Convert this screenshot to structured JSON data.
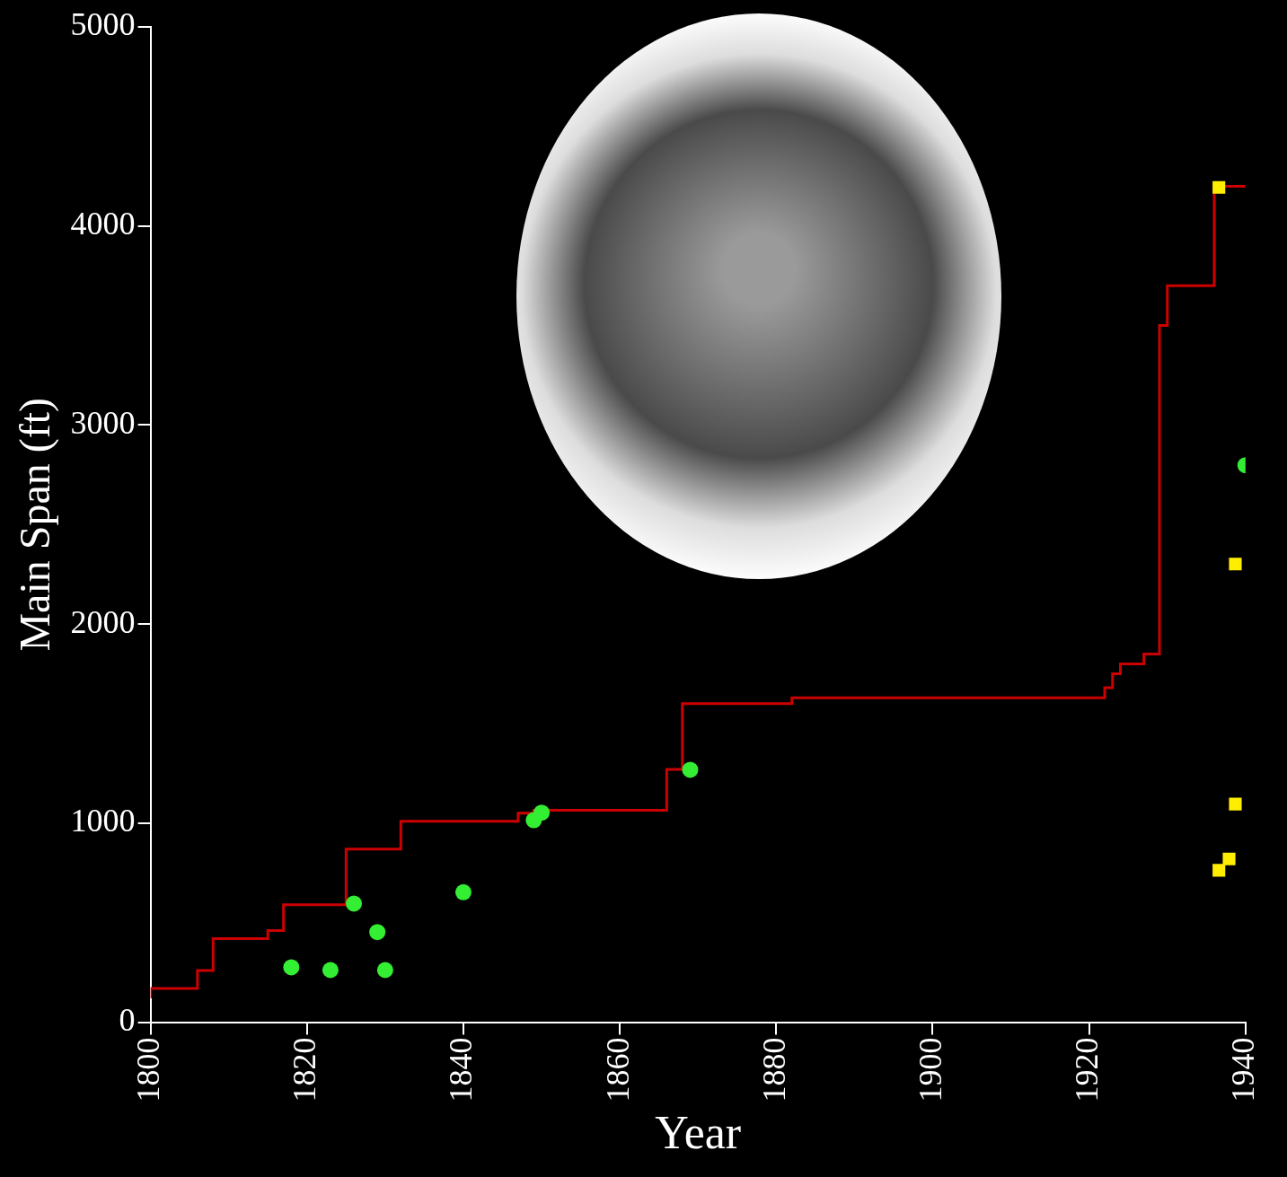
{
  "chart_data": {
    "type": "scatter",
    "x_label": "Year",
    "y_label": "Main Span (ft)",
    "xlim": [
      1800,
      1940
    ],
    "xticks": [
      1800,
      1820,
      1840,
      1860,
      1880,
      1900,
      1920,
      1940
    ],
    "ylim": [
      0,
      5000
    ],
    "yticks": [
      0,
      1000,
      2000,
      3000,
      4000,
      5000
    ],
    "grid": false,
    "series": [
      {
        "type": "line",
        "line_style": "step",
        "marker": "none",
        "color": "#cc0000",
        "x": [
          1800,
          1806,
          1808,
          1815,
          1817,
          1825,
          1832,
          1847,
          1849,
          1866,
          1868,
          1882,
          1922,
          1923,
          1924,
          1927,
          1929,
          1930,
          1936,
          1937,
          1940
        ],
        "values": [
          120,
          170,
          260,
          420,
          460,
          590,
          870,
          1010,
          1050,
          1065,
          1270,
          1600,
          1630,
          1680,
          1750,
          1800,
          1850,
          3500,
          3700,
          4200,
          4200
        ]
      },
      {
        "type": "scatter",
        "marker": "circle",
        "color": "#33ee33",
        "x": [
          1818,
          1823,
          1826,
          1829,
          1830,
          1840,
          1849,
          1850,
          1869,
          1940
        ],
        "values": [
          276,
          262,
          596,
          453,
          262,
          653,
          1015,
          1053,
          1268,
          2798
        ]
      },
      {
        "type": "scatter",
        "marker": "square",
        "color": "#ffee00",
        "x": [
          1936.6,
          1938.7,
          1938.7,
          1937.9,
          1936.6
        ],
        "values": [
          4194,
          2302,
          1096,
          820,
          763
        ]
      }
    ]
  }
}
